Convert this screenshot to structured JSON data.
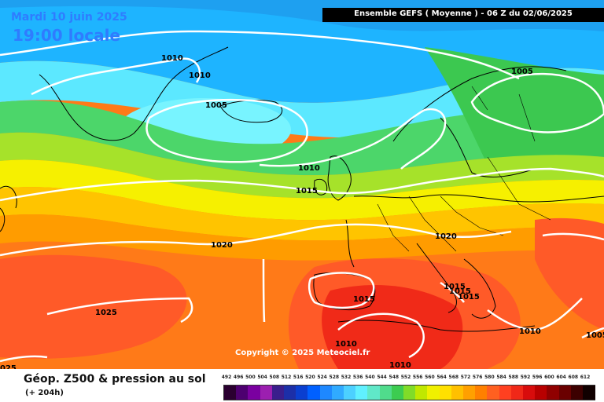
{
  "header": {
    "date": "Mardi 10 juin 2025",
    "time": "19:00 locale",
    "model_title": "Ensemble GEFS  ( Moyenne )  -  06 Z du 02/06/2025"
  },
  "map": {
    "copyright": "Copyright © 2025 Meteociel.fr",
    "isobar_labels": [
      {
        "text": "1010",
        "anchor": "greenland-west"
      },
      {
        "text": "1010",
        "anchor": "greenland-east"
      },
      {
        "text": "1005",
        "anchor": "iceland-low"
      },
      {
        "text": "1005",
        "anchor": "scandinavia"
      },
      {
        "text": "1010",
        "anchor": "north-sea"
      },
      {
        "text": "1015",
        "anchor": "ireland"
      },
      {
        "text": "1020",
        "anchor": "central-europe"
      },
      {
        "text": "1020",
        "anchor": "mid-atlantic"
      },
      {
        "text": "1025",
        "anchor": "azores"
      },
      {
        "text": "1015",
        "anchor": "iberia"
      },
      {
        "text": "1015",
        "anchor": "italy-1"
      },
      {
        "text": "1015",
        "anchor": "italy-2"
      },
      {
        "text": "1015",
        "anchor": "italy-3"
      },
      {
        "text": "1010",
        "anchor": "north-africa"
      },
      {
        "text": "1010",
        "anchor": "sahara"
      },
      {
        "text": "1010",
        "anchor": "east-med"
      },
      {
        "text": "1005",
        "anchor": "east-edge"
      },
      {
        "text": "025",
        "anchor": "sw-corner"
      }
    ]
  },
  "footer": {
    "title": "Géop. Z500 & pression au sol",
    "subtitle": "(+ 204h)"
  },
  "scale": {
    "labels": [
      "492",
      "496",
      "500",
      "504",
      "508",
      "512",
      "516",
      "520",
      "524",
      "528",
      "532",
      "536",
      "540",
      "544",
      "548",
      "552",
      "556",
      "560",
      "564",
      "568",
      "572",
      "576",
      "580",
      "584",
      "588",
      "592",
      "596",
      "600",
      "604",
      "608",
      "612"
    ],
    "colors": [
      "#2a0030",
      "#4d0070",
      "#7a00a0",
      "#9c1fb0",
      "#3a1e8c",
      "#1c2fa8",
      "#0a3fd0",
      "#0060ff",
      "#1e88ff",
      "#30aaff",
      "#4cd0ff",
      "#60f0ff",
      "#60e8c8",
      "#50dc8c",
      "#3ccc50",
      "#80dc28",
      "#c0e800",
      "#f0f000",
      "#ffe000",
      "#ffc000",
      "#ffa000",
      "#ff8000",
      "#ff6020",
      "#ff4020",
      "#f02818",
      "#d80c0c",
      "#b80000",
      "#900000",
      "#6a0000",
      "#3c0000",
      "#100000"
    ]
  }
}
